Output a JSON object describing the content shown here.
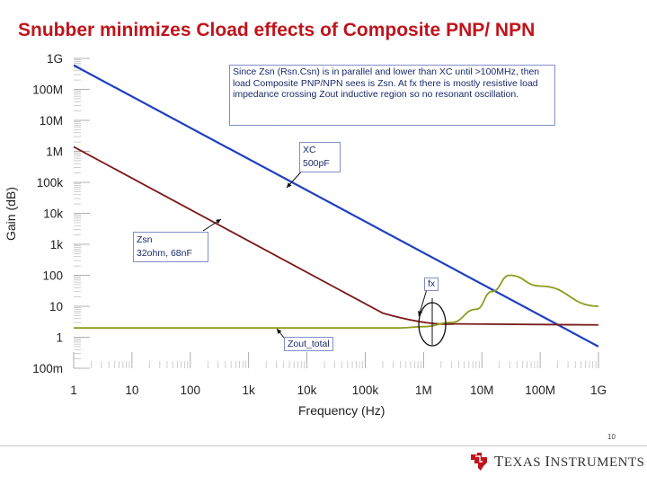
{
  "title": "Snubber minimizes Cload effects of Composite PNP/ NPN",
  "chart_data": {
    "type": "line",
    "xlabel": "Frequency (Hz)",
    "ylabel": "Gain (dB)",
    "x_scale": "log",
    "y_scale": "log",
    "xlim": [
      1,
      1000000000
    ],
    "ylim": [
      0.1,
      1000000000
    ],
    "x_ticks": [
      "1",
      "10",
      "100",
      "1k",
      "10k",
      "100k",
      "1M",
      "10M",
      "100M",
      "1G"
    ],
    "y_ticks": [
      "1G",
      "100M",
      "10M",
      "1M",
      "100k",
      "10k",
      "1k",
      "100",
      "10",
      "1",
      "100m"
    ],
    "grid": false,
    "series": [
      {
        "color": "#1f3fbf",
        "x": [
          1,
          1000000000
        ],
        "y": [
          600000000,
          0.5
        ]
      },
      {
        "color": "#7a1a1a",
        "x": [
          1,
          200000,
          1200000,
          1000000000
        ],
        "y": [
          1400000,
          6,
          3,
          2.5
        ]
      },
      {
        "color": "#8f9a1e",
        "x": [
          1,
          400000,
          1000000,
          3000000,
          8000000,
          15000000,
          30000000,
          100000000,
          1000000000
        ],
        "y": [
          2,
          2,
          2.2,
          3,
          8,
          30,
          100,
          45,
          10
        ]
      }
    ],
    "annotations": [
      {
        "id": "note_main",
        "text": "Since Zsn (Rsn.Csn) is in parallel and lower than XC until >100MHz, then load Composite PNP/NPN sees is Zsn. At fx there is mostly resistive load impedance crossing Zout inductive region so no resonant oscillation."
      },
      {
        "id": "xc",
        "lines": [
          "XC",
          "500pF"
        ]
      },
      {
        "id": "zsn",
        "lines": [
          "Zsn",
          "32ohm, 68nF"
        ]
      },
      {
        "id": "fx",
        "text": "fx"
      },
      {
        "id": "zout",
        "text": "Zout_total"
      }
    ]
  },
  "footer": {
    "page_number": "10",
    "brand": "Texas Instruments",
    "brand_color": "#c0141c"
  }
}
